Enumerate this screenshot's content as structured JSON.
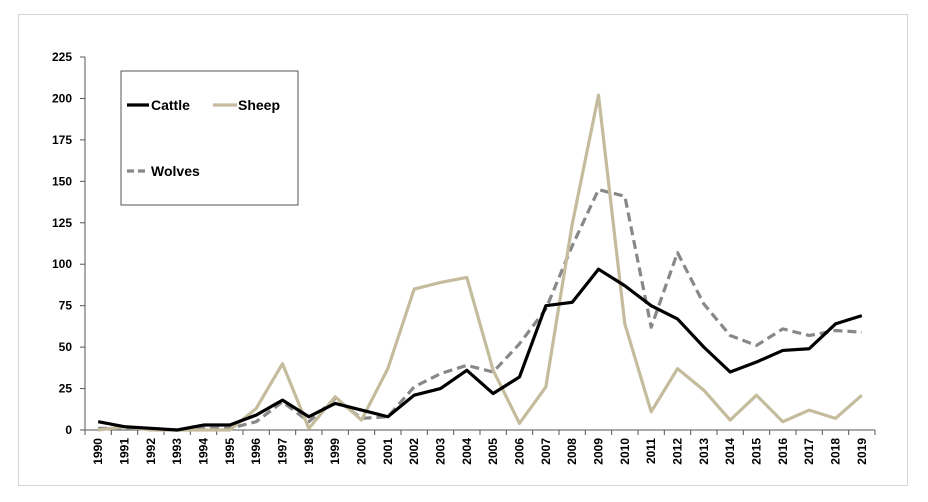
{
  "chart_data": {
    "type": "line",
    "title": "",
    "xlabel": "",
    "ylabel": "",
    "x": [
      "1990",
      "1991",
      "1992",
      "1993",
      "1994",
      "1995",
      "1996",
      "1997",
      "1998",
      "1999",
      "2000",
      "2001",
      "2002",
      "2003",
      "2004",
      "2005",
      "2006",
      "2007",
      "2008",
      "2009",
      "2010",
      "2011",
      "2012",
      "2013",
      "2014",
      "2015",
      "2016",
      "2017",
      "2018",
      "2019"
    ],
    "ylim": [
      0,
      225
    ],
    "yticks": [
      0,
      25,
      50,
      75,
      100,
      125,
      150,
      175,
      200,
      225
    ],
    "grid": false,
    "legend_position": "top-left",
    "series": [
      {
        "name": "Cattle",
        "color": "#000000",
        "style": "solid",
        "values": [
          5,
          2,
          1,
          0,
          3,
          3,
          9,
          18,
          8,
          16,
          12,
          8,
          21,
          25,
          36,
          22,
          32,
          75,
          77,
          97,
          87,
          75,
          67,
          50,
          35,
          41,
          48,
          49,
          64,
          69
        ]
      },
      {
        "name": "Sheep",
        "color": "#c5bc9d",
        "style": "solid",
        "values": [
          0,
          2,
          0,
          0,
          0,
          0,
          13,
          40,
          1,
          20,
          6,
          37,
          85,
          89,
          92,
          36,
          4,
          26,
          124,
          202,
          64,
          11,
          37,
          24,
          6,
          21,
          5,
          12,
          7,
          21
        ]
      },
      {
        "name": "Wolves",
        "color": "#888888",
        "style": "dashed",
        "values": [
          1,
          1,
          1,
          0,
          1,
          1,
          5,
          17,
          5,
          19,
          7,
          8,
          26,
          34,
          39,
          35,
          52,
          73,
          111,
          145,
          141,
          62,
          107,
          76,
          57,
          51,
          61,
          57,
          60,
          59
        ]
      }
    ]
  }
}
